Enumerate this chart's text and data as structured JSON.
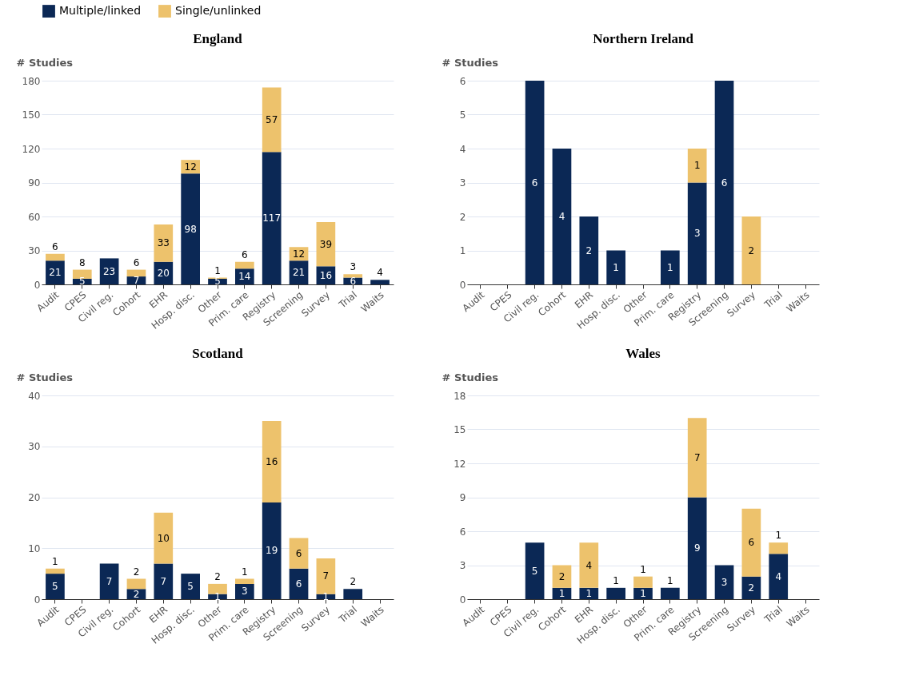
{
  "chart_data": [
    {
      "type": "bar",
      "title": "England",
      "ylabel": "# Studies",
      "categories": [
        "Audit",
        "CPES",
        "Civil reg.",
        "Cohort",
        "EHR",
        "Hosp. disc.",
        "Other",
        "Prim. care",
        "Registry",
        "Screening",
        "Survey",
        "Trial",
        "Waits"
      ],
      "stacked": true,
      "series": [
        {
          "name": "Multiple/linked",
          "color": "#0b2855",
          "values": [
            21,
            5,
            23,
            7,
            20,
            98,
            5,
            14,
            117,
            21,
            16,
            6,
            4
          ]
        },
        {
          "name": "Single/unlinked",
          "color": "#edc26c",
          "values": [
            6,
            8,
            null,
            6,
            33,
            12,
            1,
            6,
            57,
            12,
            39,
            3,
            null
          ]
        }
      ],
      "ylim": [
        0,
        180
      ],
      "yticks": [
        0,
        30,
        60,
        90,
        120,
        150,
        180
      ],
      "grid": "y",
      "legend": "top",
      "data_labels": true
    },
    {
      "type": "bar",
      "title": "Northern Ireland",
      "ylabel": "# Studies",
      "categories": [
        "Audit",
        "CPES",
        "Civil reg.",
        "Cohort",
        "EHR",
        "Hosp. disc.",
        "Other",
        "Prim. care",
        "Registry",
        "Screening",
        "Survey",
        "Trial",
        "Waits"
      ],
      "stacked": true,
      "series": [
        {
          "name": "Multiple/linked",
          "color": "#0b2855",
          "values": [
            null,
            null,
            6,
            4,
            2,
            1,
            null,
            1,
            3,
            6,
            null,
            null,
            null
          ]
        },
        {
          "name": "Single/unlinked",
          "color": "#edc26c",
          "values": [
            null,
            null,
            null,
            null,
            null,
            null,
            null,
            null,
            1,
            null,
            2,
            null,
            null
          ]
        }
      ],
      "ylim": [
        0,
        6
      ],
      "yticks": [
        0,
        1,
        2,
        3,
        4,
        5,
        6
      ],
      "grid": "y",
      "legend": "top",
      "data_labels": true
    },
    {
      "type": "bar",
      "title": "Scotland",
      "ylabel": "# Studies",
      "categories": [
        "Audit",
        "CPES",
        "Civil reg.",
        "Cohort",
        "EHR",
        "Hosp. disc.",
        "Other",
        "Prim. care",
        "Registry",
        "Screening",
        "Survey",
        "Trial",
        "Waits"
      ],
      "stacked": true,
      "series": [
        {
          "name": "Multiple/linked",
          "color": "#0b2855",
          "values": [
            5,
            null,
            7,
            2,
            7,
            5,
            1,
            3,
            19,
            6,
            1,
            2,
            null
          ]
        },
        {
          "name": "Single/unlinked",
          "color": "#edc26c",
          "values": [
            1,
            null,
            null,
            2,
            10,
            null,
            2,
            1,
            16,
            6,
            7,
            null,
            null
          ]
        }
      ],
      "ylim": [
        0,
        40
      ],
      "yticks": [
        0,
        10,
        20,
        30,
        40
      ],
      "grid": "y",
      "legend": "top",
      "data_labels": true
    },
    {
      "type": "bar",
      "title": "Wales",
      "ylabel": "# Studies",
      "categories": [
        "Audit",
        "CPES",
        "Civil reg.",
        "Cohort",
        "EHR",
        "Hosp. disc.",
        "Other",
        "Prim. care",
        "Registry",
        "Screening",
        "Survey",
        "Trial",
        "Waits"
      ],
      "stacked": true,
      "series": [
        {
          "name": "Multiple/linked",
          "color": "#0b2855",
          "values": [
            null,
            null,
            5,
            1,
            1,
            1,
            1,
            1,
            9,
            3,
            2,
            4,
            null
          ]
        },
        {
          "name": "Single/unlinked",
          "color": "#edc26c",
          "values": [
            null,
            null,
            null,
            2,
            4,
            null,
            1,
            null,
            7,
            null,
            6,
            1,
            null
          ]
        }
      ],
      "ylim": [
        0,
        18
      ],
      "yticks": [
        0,
        3,
        6,
        9,
        12,
        15,
        18
      ],
      "grid": "y",
      "legend": "top",
      "data_labels": true
    }
  ]
}
